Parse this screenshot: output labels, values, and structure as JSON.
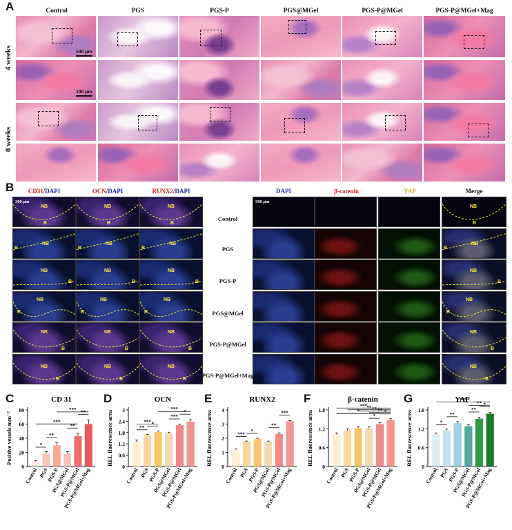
{
  "panels": {
    "a": "A",
    "b": "B",
    "c": "C",
    "d": "D",
    "e": "E",
    "f": "F",
    "g": "G"
  },
  "he": {
    "columns": [
      "Control",
      "PGS",
      "PGS-P",
      "PGS@MGel",
      "PGS-P@MGel",
      "PGS-P@MGel+Mag"
    ],
    "rows": [
      "4 weeks",
      "8 weeks"
    ],
    "scale_low": "500 μm",
    "scale_high": "200 μm"
  },
  "if_left": {
    "columns": [
      {
        "a": "CD31",
        "sep": "/",
        "b": "DAPI"
      },
      {
        "a": "OCN",
        "sep": "/",
        "b": "DAPI"
      },
      {
        "a": "RUNX2",
        "sep": "/",
        "b": "DAPI"
      }
    ],
    "scale": "300 μm",
    "nb": "NB",
    "b": "B"
  },
  "groups": [
    "Control",
    "PGS",
    "PGS-P",
    "PGS@MGel",
    "PGS-P@MGel",
    "PGS-P@MGel+Mag"
  ],
  "if_right": {
    "columns": [
      "DAPI",
      "β-catenin",
      "YAP",
      "Merge"
    ],
    "scale": "300 μm"
  },
  "colors": {
    "cd31": "#d02020",
    "ocn": "#d02020",
    "runx2": "#d02020",
    "dapi": "#1c2bb0",
    "bcat": "#e01818",
    "yap": "#c9b020",
    "merge": "#111111",
    "dashed": "#e9e23a"
  },
  "chart_data": [
    {
      "type": "bar",
      "title": "CD 31",
      "ylabel": "Positive vessels mm⁻²",
      "categories": [
        "Control",
        "PGS",
        "PGS-P",
        "PGS@MGel",
        "PGS-P@MGel",
        "PGS-P@MGel+Mag"
      ],
      "values": [
        7,
        18,
        30,
        18,
        43,
        60
      ],
      "errors": [
        1.5,
        3,
        4,
        3,
        4,
        6
      ],
      "ylim": [
        0,
        80
      ],
      "yticks": [
        0,
        20,
        40,
        60,
        80
      ],
      "colors": [
        "#fbe6df",
        "#f9c5b4",
        "#f7a891",
        "#f5c4b6",
        "#ee6d6d",
        "#e9585c"
      ],
      "sig": [
        {
          "from": 0,
          "to": 1,
          "label": "*"
        },
        {
          "from": 1,
          "to": 2,
          "label": "**"
        },
        {
          "from": 0,
          "to": 4,
          "label": "***"
        },
        {
          "from": 3,
          "to": 4,
          "label": "**"
        },
        {
          "from": 2,
          "to": 5,
          "label": "***"
        },
        {
          "from": 4,
          "to": 5,
          "label": "**"
        }
      ]
    },
    {
      "type": "bar",
      "title": "OCN",
      "ylabel": "REL fluorescence area",
      "categories": [
        "Control",
        "PGS",
        "PGS-P",
        "PGS@MGel",
        "PGS-P@MGel",
        "PGS-P@MGel+Mag"
      ],
      "values": [
        1.3,
        1.67,
        1.83,
        1.78,
        2.2,
        2.38
      ],
      "errors": [
        0.1,
        0.04,
        0.05,
        0.04,
        0.05,
        0.1
      ],
      "ylim": [
        0,
        3.0
      ],
      "yticks": [
        0,
        0.6,
        1.2,
        1.8,
        2.4,
        3.0
      ],
      "colors": [
        "#fbeed2",
        "#f8d79e",
        "#f7c66b",
        "#f2d9b2",
        "#ef8a8a",
        "#f0968e"
      ],
      "sig": [
        {
          "from": 0,
          "to": 1,
          "label": "**"
        },
        {
          "from": 1,
          "to": 2,
          "label": "*"
        },
        {
          "from": 0,
          "to": 2,
          "label": "***"
        },
        {
          "from": 3,
          "to": 4,
          "label": "***"
        },
        {
          "from": 4,
          "to": 5,
          "label": "*"
        },
        {
          "from": 2,
          "to": 5,
          "label": "***"
        }
      ]
    },
    {
      "type": "bar",
      "title": "RUNX2",
      "ylabel": "REL fluorescence area",
      "categories": [
        "Control",
        "PGS",
        "PGS-P",
        "PGS@MGel",
        "PGS-P@MGel",
        "PGS-P@MGel+Mag"
      ],
      "values": [
        1.2,
        1.75,
        1.95,
        1.75,
        2.3,
        3.2
      ],
      "errors": [
        0.05,
        0.05,
        0.05,
        0.05,
        0.08,
        0.05
      ],
      "ylim": [
        0,
        4
      ],
      "yticks": [
        0,
        1,
        2,
        3,
        4
      ],
      "colors": [
        "#fbeed2",
        "#f8d79e",
        "#f7c66b",
        "#f2d9b2",
        "#ef8a8a",
        "#f0968e"
      ],
      "sig": [
        {
          "from": 0,
          "to": 1,
          "label": "***"
        },
        {
          "from": 1,
          "to": 2,
          "label": "*"
        },
        {
          "from": 3,
          "to": 4,
          "label": "**"
        },
        {
          "from": 4,
          "to": 5,
          "label": "***"
        }
      ]
    },
    {
      "type": "bar",
      "title": "β-catenin",
      "ylabel": "REL fluorescence area",
      "categories": [
        "Control",
        "PGS",
        "PGS-P",
        "PGS@MGel",
        "PGS-P@MGel",
        "PGS-P@MGel+Mag"
      ],
      "values": [
        1.02,
        1.15,
        1.22,
        1.22,
        1.35,
        1.48
      ],
      "errors": [
        0.05,
        0.05,
        0.04,
        0.04,
        0.04,
        0.04
      ],
      "ylim": [
        0,
        1.8
      ],
      "yticks": [
        0,
        0.6,
        1.2,
        1.8
      ],
      "colors": [
        "#fbeed2",
        "#f8d79e",
        "#f7c66b",
        "#f2d9b2",
        "#ef8a8a",
        "#f0968e"
      ],
      "sig": [
        {
          "from": 3,
          "to": 4,
          "label": "*"
        },
        {
          "from": 4,
          "to": 5,
          "label": "*"
        },
        {
          "from": 3,
          "to": 5,
          "label": "**"
        },
        {
          "from": 2,
          "to": 5,
          "label": "**"
        },
        {
          "from": 1,
          "to": 5,
          "label": "**"
        },
        {
          "from": 0,
          "to": 5,
          "label": "***"
        },
        {
          "from": 0,
          "to": 4,
          "label": "*"
        }
      ]
    },
    {
      "type": "bar",
      "title": "YAP",
      "ylabel": "REL fluorescence area",
      "categories": [
        "Control",
        "PGS",
        "PGS-P",
        "PGS@MGel",
        "PGS-P@MGel",
        "PGS-P@MGel+Mag"
      ],
      "values": [
        1.02,
        1.15,
        1.38,
        1.28,
        1.52,
        1.68
      ],
      "errors": [
        0.05,
        0.04,
        0.05,
        0.05,
        0.05,
        0.04
      ],
      "ylim": [
        0,
        1.8
      ],
      "yticks": [
        0,
        0.6,
        1.2,
        1.8
      ],
      "colors": [
        "#dceef8",
        "#c3e2f2",
        "#9ed1e6",
        "#56a8a0",
        "#2e9a48",
        "#1f7a2a"
      ],
      "sig": [
        {
          "from": 0,
          "to": 1,
          "label": "*"
        },
        {
          "from": 1,
          "to": 2,
          "label": "**"
        },
        {
          "from": 3,
          "to": 4,
          "label": "**"
        },
        {
          "from": 4,
          "to": 5,
          "label": "*"
        },
        {
          "from": 3,
          "to": 5,
          "label": "**"
        },
        {
          "from": 0,
          "to": 5,
          "label": "***"
        }
      ]
    }
  ]
}
